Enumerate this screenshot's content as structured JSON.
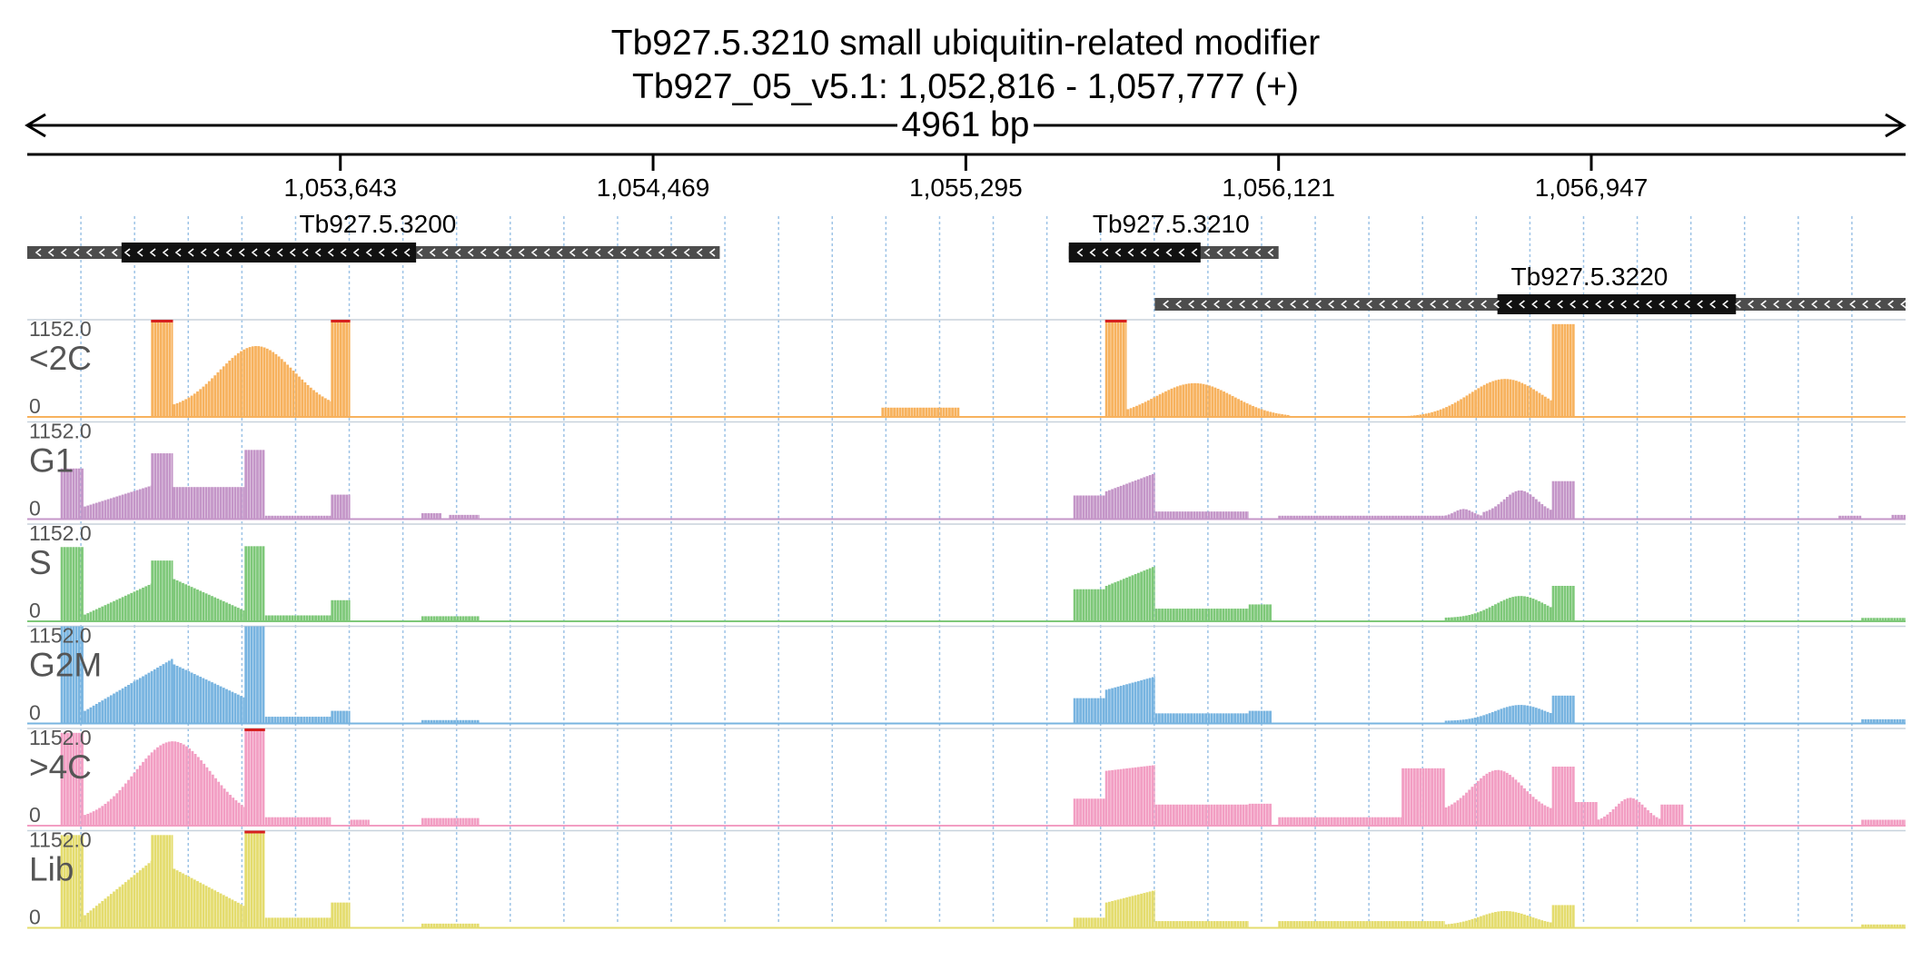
{
  "chart_data": {
    "type": "area",
    "title": "Tb927.5.3210  small ubiquitin-related modifier",
    "subtitle": "Tb927_05_v5.1: 1,052,816 - 1,057,777 (+)",
    "span_label": "4961 bp",
    "x_range": [
      1052816,
      1057777
    ],
    "x_ticks": [
      1053643,
      1054469,
      1055295,
      1056121,
      1056947
    ],
    "x_tick_labels": [
      "1,053,643",
      "1,054,469",
      "1,055,295",
      "1,056,121",
      "1,056,947"
    ],
    "grid": true,
    "genes": [
      {
        "name": "Tb927.5.3200",
        "strand": "-",
        "utr": [
          1052816,
          1054645
        ],
        "cds": [
          1053065,
          1053843
        ]
      },
      {
        "name": "Tb927.5.3210",
        "strand": "-",
        "utr": [
          1055567,
          1056121
        ],
        "cds": [
          1055567,
          1055915
        ]
      },
      {
        "name": "Tb927.5.3220",
        "strand": "-",
        "utr": [
          1055794,
          1057777
        ],
        "cds": [
          1056699,
          1057329
        ]
      }
    ],
    "y_max_label": "1152.0",
    "y_min_label": "0",
    "ylim": [
      0,
      1152
    ],
    "tracks": [
      {
        "name": "<2C",
        "color": "#f7b25e",
        "clip_color": "#d62020",
        "regions": [
          {
            "x": [
              1053143,
              1053201
            ],
            "shape": "flat",
            "peak": 1152
          },
          {
            "x": [
              1053201,
              1053618
            ],
            "shape": "bell",
            "peak": 840,
            "center": 1053422,
            "base": 80
          },
          {
            "x": [
              1053618,
              1053669
            ],
            "shape": "flat",
            "peak": 1152
          },
          {
            "x": [
              1055072,
              1055278
            ],
            "shape": "flat",
            "peak": 110
          },
          {
            "x": [
              1055663,
              1055720
            ],
            "shape": "flat",
            "peak": 1152
          },
          {
            "x": [
              1055720,
              1056151
            ],
            "shape": "bell",
            "peak": 400,
            "center": 1055900,
            "base": 0
          },
          {
            "x": [
              1056446,
              1056843
            ],
            "shape": "bell",
            "peak": 450,
            "center": 1056720,
            "base": 0
          },
          {
            "x": [
              1056843,
              1056903
            ],
            "shape": "flat",
            "peak": 1100
          }
        ]
      },
      {
        "name": "G1",
        "color": "#c496c8",
        "regions": [
          {
            "x": [
              1052904,
              1052965
            ],
            "shape": "flat",
            "peak": 600
          },
          {
            "x": [
              1052965,
              1053143
            ],
            "shape": "ramp",
            "from": 150,
            "to": 400
          },
          {
            "x": [
              1053143,
              1053201
            ],
            "shape": "flat",
            "peak": 780
          },
          {
            "x": [
              1053201,
              1053390
            ],
            "shape": "flat",
            "peak": 380
          },
          {
            "x": [
              1053390,
              1053444
            ],
            "shape": "flat",
            "peak": 820
          },
          {
            "x": [
              1053444,
              1053618
            ],
            "shape": "flat",
            "peak": 40
          },
          {
            "x": [
              1053618,
              1053669
            ],
            "shape": "flat",
            "peak": 290
          },
          {
            "x": [
              1053857,
              1053910
            ],
            "shape": "flat",
            "peak": 70
          },
          {
            "x": [
              1053930,
              1054010
            ],
            "shape": "flat",
            "peak": 50
          },
          {
            "x": [
              1055579,
              1055663
            ],
            "shape": "flat",
            "peak": 280
          },
          {
            "x": [
              1055663,
              1055795
            ],
            "shape": "ramp",
            "from": 330,
            "to": 550
          },
          {
            "x": [
              1055795,
              1056042
            ],
            "shape": "flat",
            "peak": 90
          },
          {
            "x": [
              1056120,
              1056560
            ],
            "shape": "flat",
            "peak": 40
          },
          {
            "x": [
              1056560,
              1056660
            ],
            "shape": "bell",
            "peak": 120,
            "center": 1056610,
            "base": 30
          },
          {
            "x": [
              1056660,
              1056843
            ],
            "shape": "bell",
            "peak": 340,
            "center": 1056760,
            "base": 60
          },
          {
            "x": [
              1056843,
              1056903
            ],
            "shape": "flat",
            "peak": 450
          },
          {
            "x": [
              1057600,
              1057660
            ],
            "shape": "flat",
            "peak": 40
          },
          {
            "x": [
              1057740,
              1057777
            ],
            "shape": "flat",
            "peak": 50
          }
        ]
      },
      {
        "name": "S",
        "color": "#7ec879",
        "regions": [
          {
            "x": [
              1052904,
              1052965
            ],
            "shape": "flat",
            "peak": 880
          },
          {
            "x": [
              1052965,
              1053143
            ],
            "shape": "ramp",
            "from": 80,
            "to": 450
          },
          {
            "x": [
              1053143,
              1053201
            ],
            "shape": "flat",
            "peak": 720
          },
          {
            "x": [
              1053201,
              1053390
            ],
            "shape": "ramp",
            "from": 500,
            "to": 120
          },
          {
            "x": [
              1053390,
              1053444
            ],
            "shape": "flat",
            "peak": 890
          },
          {
            "x": [
              1053444,
              1053618
            ],
            "shape": "flat",
            "peak": 70
          },
          {
            "x": [
              1053618,
              1053669
            ],
            "shape": "flat",
            "peak": 250
          },
          {
            "x": [
              1053857,
              1054010
            ],
            "shape": "flat",
            "peak": 60
          },
          {
            "x": [
              1055579,
              1055663
            ],
            "shape": "flat",
            "peak": 380
          },
          {
            "x": [
              1055663,
              1055795
            ],
            "shape": "ramp",
            "from": 420,
            "to": 660
          },
          {
            "x": [
              1055795,
              1056042
            ],
            "shape": "flat",
            "peak": 150
          },
          {
            "x": [
              1056042,
              1056103
            ],
            "shape": "flat",
            "peak": 200
          },
          {
            "x": [
              1056560,
              1056843
            ],
            "shape": "bell",
            "peak": 300,
            "center": 1056760,
            "base": 40
          },
          {
            "x": [
              1056843,
              1056903
            ],
            "shape": "flat",
            "peak": 420
          },
          {
            "x": [
              1057660,
              1057777
            ],
            "shape": "flat",
            "peak": 40
          }
        ]
      },
      {
        "name": "G2M",
        "color": "#78b4e0",
        "regions": [
          {
            "x": [
              1052904,
              1052965
            ],
            "shape": "flat",
            "peak": 1152
          },
          {
            "x": [
              1052965,
              1053201
            ],
            "shape": "ramp",
            "from": 150,
            "to": 780
          },
          {
            "x": [
              1053201,
              1053390
            ],
            "shape": "ramp",
            "from": 700,
            "to": 300
          },
          {
            "x": [
              1053390,
              1053444
            ],
            "shape": "flat",
            "peak": 1152
          },
          {
            "x": [
              1053444,
              1053618
            ],
            "shape": "flat",
            "peak": 80
          },
          {
            "x": [
              1053618,
              1053669
            ],
            "shape": "flat",
            "peak": 150
          },
          {
            "x": [
              1053857,
              1054010
            ],
            "shape": "flat",
            "peak": 40
          },
          {
            "x": [
              1055579,
              1055663
            ],
            "shape": "flat",
            "peak": 300
          },
          {
            "x": [
              1055663,
              1055795
            ],
            "shape": "ramp",
            "from": 400,
            "to": 560
          },
          {
            "x": [
              1055795,
              1056042
            ],
            "shape": "flat",
            "peak": 120
          },
          {
            "x": [
              1056042,
              1056103
            ],
            "shape": "flat",
            "peak": 150
          },
          {
            "x": [
              1056560,
              1056843
            ],
            "shape": "bell",
            "peak": 220,
            "center": 1056760,
            "base": 30
          },
          {
            "x": [
              1056843,
              1056903
            ],
            "shape": "flat",
            "peak": 330
          },
          {
            "x": [
              1057660,
              1057777
            ],
            "shape": "flat",
            "peak": 50
          }
        ]
      },
      {
        "name": ">4C",
        "color": "#f29ec3",
        "clip_color": "#d62020",
        "regions": [
          {
            "x": [
              1052904,
              1052965
            ],
            "shape": "flat",
            "peak": 1100
          },
          {
            "x": [
              1052965,
              1053390
            ],
            "shape": "bell",
            "peak": 1000,
            "center": 1053201,
            "base": 60
          },
          {
            "x": [
              1053390,
              1053444
            ],
            "shape": "flat",
            "peak": 1152
          },
          {
            "x": [
              1053444,
              1053618
            ],
            "shape": "flat",
            "peak": 100
          },
          {
            "x": [
              1053669,
              1053720
            ],
            "shape": "flat",
            "peak": 70
          },
          {
            "x": [
              1053857,
              1054010
            ],
            "shape": "flat",
            "peak": 90
          },
          {
            "x": [
              1055579,
              1055663
            ],
            "shape": "flat",
            "peak": 320
          },
          {
            "x": [
              1055663,
              1055795
            ],
            "shape": "ramp",
            "from": 650,
            "to": 720
          },
          {
            "x": [
              1055795,
              1056042
            ],
            "shape": "flat",
            "peak": 250
          },
          {
            "x": [
              1056042,
              1056103
            ],
            "shape": "flat",
            "peak": 260
          },
          {
            "x": [
              1056120,
              1056446
            ],
            "shape": "flat",
            "peak": 100
          },
          {
            "x": [
              1056446,
              1056560
            ],
            "shape": "flat",
            "peak": 680
          },
          {
            "x": [
              1056560,
              1056843
            ],
            "shape": "bell",
            "peak": 660,
            "center": 1056700,
            "base": 150
          },
          {
            "x": [
              1056843,
              1056903
            ],
            "shape": "flat",
            "peak": 700
          },
          {
            "x": [
              1056903,
              1056963
            ],
            "shape": "flat",
            "peak": 280
          },
          {
            "x": [
              1056963,
              1057130
            ],
            "shape": "bell",
            "peak": 330,
            "center": 1057050,
            "base": 40
          },
          {
            "x": [
              1057130,
              1057190
            ],
            "shape": "flat",
            "peak": 250
          },
          {
            "x": [
              1057660,
              1057777
            ],
            "shape": "flat",
            "peak": 70
          }
        ]
      },
      {
        "name": "Lib",
        "color": "#e4dc6e",
        "clip_color": "#d62020",
        "regions": [
          {
            "x": [
              1052904,
              1052965
            ],
            "shape": "flat",
            "peak": 1100
          },
          {
            "x": [
              1052965,
              1053143
            ],
            "shape": "ramp",
            "from": 150,
            "to": 800
          },
          {
            "x": [
              1053143,
              1053201
            ],
            "shape": "flat",
            "peak": 1100
          },
          {
            "x": [
              1053201,
              1053390
            ],
            "shape": "ramp",
            "from": 700,
            "to": 250
          },
          {
            "x": [
              1053390,
              1053444
            ],
            "shape": "flat",
            "peak": 1152
          },
          {
            "x": [
              1053444,
              1053618
            ],
            "shape": "flat",
            "peak": 120
          },
          {
            "x": [
              1053618,
              1053669
            ],
            "shape": "flat",
            "peak": 300
          },
          {
            "x": [
              1053857,
              1054010
            ],
            "shape": "flat",
            "peak": 50
          },
          {
            "x": [
              1055579,
              1055663
            ],
            "shape": "flat",
            "peak": 120
          },
          {
            "x": [
              1055663,
              1055795
            ],
            "shape": "ramp",
            "from": 300,
            "to": 450
          },
          {
            "x": [
              1055795,
              1056042
            ],
            "shape": "flat",
            "peak": 80
          },
          {
            "x": [
              1056120,
              1056560
            ],
            "shape": "flat",
            "peak": 80
          },
          {
            "x": [
              1056560,
              1056843
            ],
            "shape": "bell",
            "peak": 200,
            "center": 1056720,
            "base": 30
          },
          {
            "x": [
              1056843,
              1056903
            ],
            "shape": "flat",
            "peak": 270
          },
          {
            "x": [
              1057660,
              1057777
            ],
            "shape": "flat",
            "peak": 40
          }
        ]
      }
    ]
  }
}
